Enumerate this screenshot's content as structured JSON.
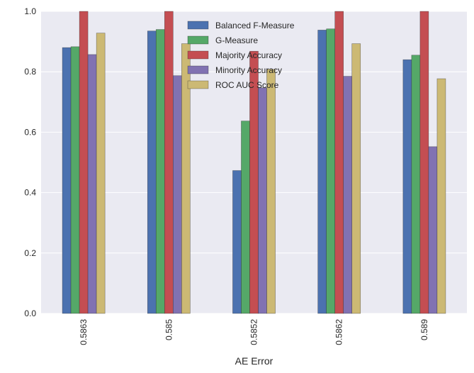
{
  "chart_data": {
    "type": "bar",
    "xlabel": "AE Error",
    "ylabel": "",
    "title": "",
    "categories": [
      "0.5863",
      "0.585",
      "0.5852",
      "0.5862",
      "0.589"
    ],
    "ylim": [
      0.0,
      1.0
    ],
    "yticks": [
      0.0,
      0.2,
      0.4,
      0.6,
      0.8,
      1.0
    ],
    "ytick_labels": [
      "0.0",
      "0.2",
      "0.4",
      "0.6",
      "0.8",
      "1.0"
    ],
    "grid": true,
    "legend_position": "top-center",
    "series": [
      {
        "name": "Balanced F-Measure",
        "color": "#4c72b0",
        "values": [
          0.88,
          0.935,
          0.473,
          0.938,
          0.84
        ]
      },
      {
        "name": "G-Measure",
        "color": "#55a868",
        "values": [
          0.883,
          0.94,
          0.637,
          0.942,
          0.855
        ]
      },
      {
        "name": "Majority Accuracy",
        "color": "#c44e52",
        "values": [
          1.0,
          1.0,
          0.868,
          1.0,
          1.0
        ]
      },
      {
        "name": "Minority Accuracy",
        "color": "#8172b2",
        "values": [
          0.857,
          0.787,
          0.747,
          0.785,
          0.552
        ]
      },
      {
        "name": "ROC AUC Score",
        "color": "#ccb974",
        "values": [
          0.928,
          0.893,
          0.808,
          0.893,
          0.777
        ]
      }
    ],
    "colors": {
      "plot_background": "#eaeaf2",
      "grid": "#ffffff",
      "text": "#262626"
    }
  }
}
